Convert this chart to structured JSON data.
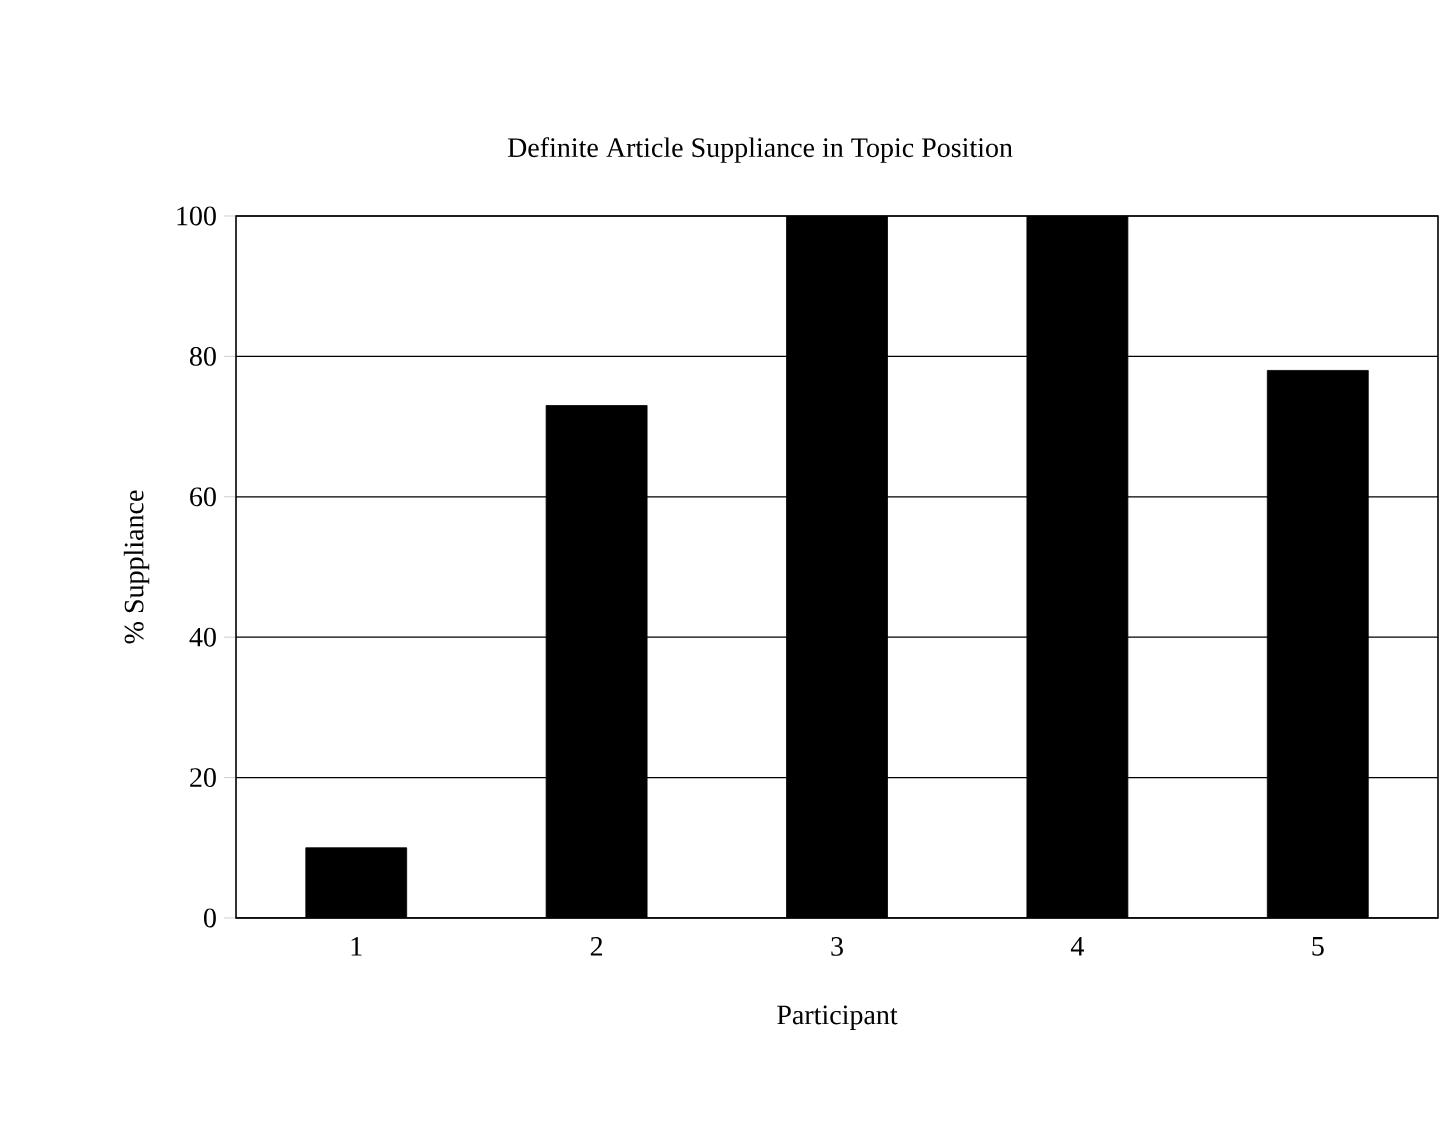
{
  "chart_data": {
    "type": "bar",
    "title": "Definite Article Suppliance in Topic Position",
    "xlabel": "Participant",
    "ylabel": "% Suppliance",
    "categories": [
      "1",
      "2",
      "3",
      "4",
      "5"
    ],
    "values": [
      10,
      73,
      100,
      100,
      78
    ],
    "color": "#000000",
    "ylim": [
      0,
      100
    ],
    "yticks": [
      0,
      20,
      40,
      60,
      80,
      100
    ],
    "grid": "y"
  }
}
